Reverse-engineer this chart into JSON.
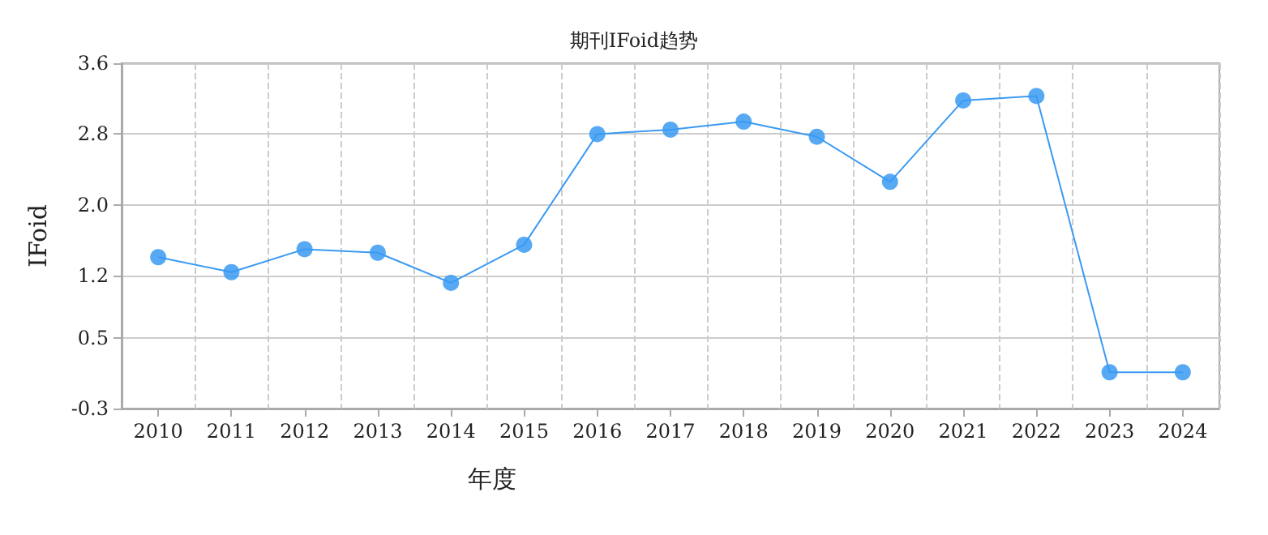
{
  "chart_data": {
    "type": "line",
    "title": "期刊IFoid趋势",
    "xlabel": "年度",
    "ylabel": "IFoid",
    "categories": [
      "2010",
      "2011",
      "2012",
      "2013",
      "2014",
      "2015",
      "2016",
      "2017",
      "2018",
      "2019",
      "2020",
      "2021",
      "2022",
      "2023",
      "2024"
    ],
    "series": [
      {
        "color": "#3a9af2",
        "values": [
          1.41,
          1.24,
          1.5,
          1.46,
          1.12,
          1.55,
          2.8,
          2.85,
          2.94,
          2.77,
          2.26,
          3.18,
          3.23,
          0.11,
          0.11
        ]
      }
    ],
    "ylim": [
      -0.3,
      3.6
    ],
    "yticks": [
      -0.3,
      0.5,
      1.2,
      {
        "value": 2.0,
        "label": "2.0"
      },
      2.8,
      3.6
    ],
    "grid": true,
    "marker": "circle",
    "line_style": "solid"
  }
}
